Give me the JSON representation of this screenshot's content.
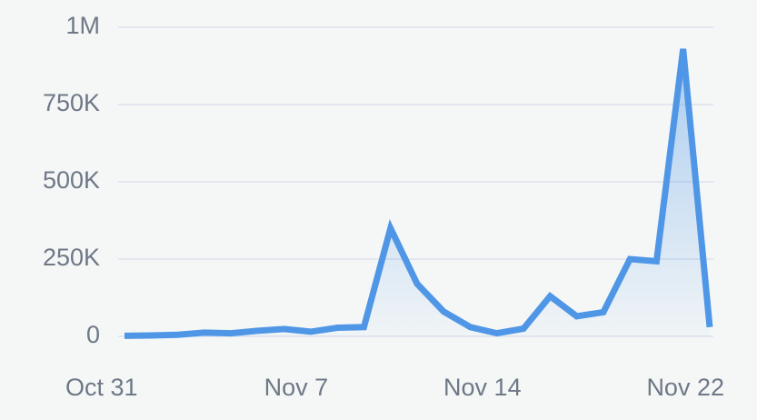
{
  "chart_data": {
    "type": "area",
    "categories": [
      "Oct 31",
      null,
      null,
      null,
      null,
      null,
      null,
      "Nov 7",
      null,
      null,
      null,
      null,
      null,
      null,
      "Nov 14",
      null,
      null,
      null,
      null,
      null,
      null,
      null,
      "Nov 22"
    ],
    "series": [
      {
        "color": "#4f97e6",
        "values": [
          2000,
          3000,
          5000,
          12000,
          10000,
          18000,
          24000,
          15000,
          28000,
          30000,
          350000,
          170000,
          80000,
          30000,
          10000,
          25000,
          130000,
          65000,
          78000,
          250000,
          243000,
          930000,
          30000
        ]
      }
    ],
    "ylim": [
      0,
      1000000
    ],
    "yticks": [
      0,
      {
        "value": 250000,
        "label": "250K"
      },
      {
        "value": 500000,
        "label": "500K"
      },
      {
        "value": 750000,
        "label": "750K"
      },
      {
        "value": 1000000,
        "label": "1M"
      }
    ],
    "grid": true
  }
}
